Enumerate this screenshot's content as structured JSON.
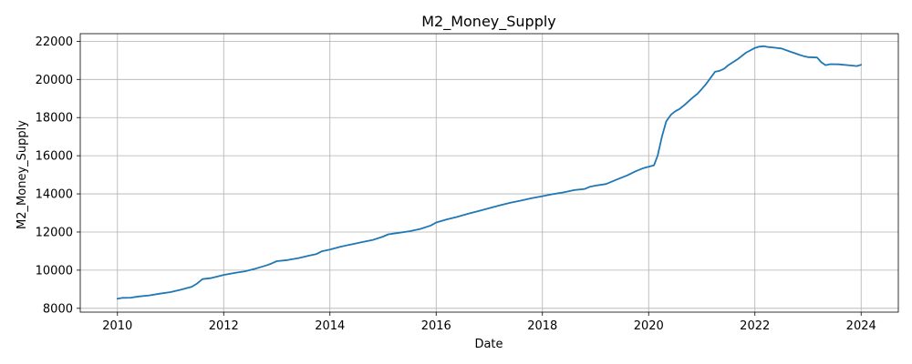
{
  "chart_data": {
    "type": "line",
    "title": "M2_Money_Supply",
    "xlabel": "Date",
    "ylabel": "M2_Money_Supply",
    "xlim": [
      2009.3,
      2024.7
    ],
    "ylim": [
      7800,
      22400
    ],
    "x_ticks": [
      2010,
      2012,
      2014,
      2016,
      2018,
      2020,
      2022,
      2024
    ],
    "x_tick_labels": [
      "2010",
      "2012",
      "2014",
      "2016",
      "2018",
      "2020",
      "2022",
      "2024"
    ],
    "y_ticks": [
      8000,
      10000,
      12000,
      14000,
      16000,
      18000,
      20000,
      22000
    ],
    "y_tick_labels": [
      "8000",
      "10000",
      "12000",
      "14000",
      "16000",
      "18000",
      "20000",
      "22000"
    ],
    "grid": true,
    "line_color": "#1f77b4",
    "series": [
      {
        "x": [
          2010.0,
          2010.1,
          2010.25,
          2010.4,
          2010.6,
          2010.8,
          2011.0,
          2011.2,
          2011.4,
          2011.5,
          2011.6,
          2011.75,
          2011.9,
          2012.0,
          2012.2,
          2012.4,
          2012.6,
          2012.8,
          2012.9,
          2013.0,
          2013.2,
          2013.4,
          2013.6,
          2013.75,
          2013.85,
          2014.0,
          2014.2,
          2014.4,
          2014.6,
          2014.8,
          2015.0,
          2015.1,
          2015.3,
          2015.5,
          2015.7,
          2015.9,
          2016.0,
          2016.2,
          2016.4,
          2016.6,
          2016.8,
          2017.0,
          2017.2,
          2017.4,
          2017.6,
          2017.8,
          2018.0,
          2018.2,
          2018.4,
          2018.6,
          2018.8,
          2018.9,
          2019.0,
          2019.2,
          2019.4,
          2019.6,
          2019.75,
          2019.9,
          2020.0,
          2020.1,
          2020.17,
          2020.25,
          2020.33,
          2020.42,
          2020.5,
          2020.58,
          2020.67,
          2020.75,
          2020.83,
          2020.92,
          2021.0,
          2021.08,
          2021.17,
          2021.25,
          2021.33,
          2021.42,
          2021.5,
          2021.67,
          2021.83,
          2022.0,
          2022.08,
          2022.17,
          2022.25,
          2022.33,
          2022.5,
          2022.67,
          2022.75,
          2022.83,
          2022.92,
          2023.0,
          2023.17,
          2023.25,
          2023.33,
          2023.42,
          2023.58,
          2023.75,
          2023.92,
          2024.0
        ],
        "values": [
          8500,
          8550,
          8560,
          8620,
          8680,
          8770,
          8850,
          8980,
          9130,
          9300,
          9530,
          9580,
          9680,
          9750,
          9850,
          9940,
          10080,
          10250,
          10350,
          10470,
          10530,
          10630,
          10760,
          10850,
          10990,
          11080,
          11230,
          11350,
          11470,
          11580,
          11760,
          11880,
          11960,
          12040,
          12160,
          12340,
          12500,
          12660,
          12800,
          12960,
          13100,
          13250,
          13400,
          13540,
          13650,
          13780,
          13880,
          13990,
          14080,
          14200,
          14260,
          14380,
          14430,
          14520,
          14750,
          14970,
          15180,
          15350,
          15420,
          15500,
          16000,
          17000,
          17800,
          18150,
          18330,
          18450,
          18650,
          18850,
          19050,
          19250,
          19500,
          19750,
          20100,
          20400,
          20450,
          20560,
          20750,
          21050,
          21400,
          21650,
          21720,
          21740,
          21700,
          21680,
          21620,
          21450,
          21380,
          21300,
          21220,
          21170,
          21150,
          20900,
          20750,
          20800,
          20790,
          20750,
          20700,
          20770
        ]
      }
    ]
  }
}
